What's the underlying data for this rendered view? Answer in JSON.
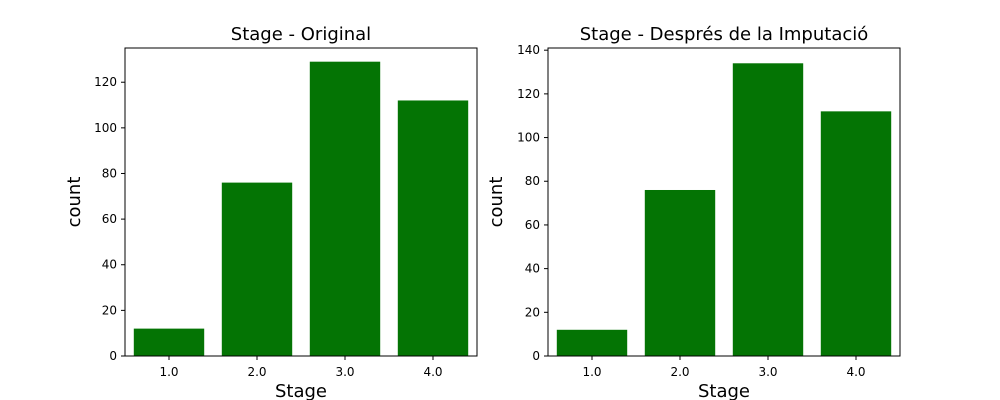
{
  "chart_data": [
    {
      "type": "bar",
      "title": "Stage - Original",
      "xlabel": "Stage",
      "ylabel": "count",
      "categories": [
        "1.0",
        "2.0",
        "3.0",
        "4.0"
      ],
      "values": [
        12,
        76,
        129,
        112
      ],
      "ylim": [
        0,
        135
      ],
      "yticks": [
        0,
        20,
        40,
        60,
        80,
        100,
        120
      ],
      "bar_color": "#047404",
      "grid": false
    },
    {
      "type": "bar",
      "title": "Stage - Després de la Imputació",
      "xlabel": "Stage",
      "ylabel": "count",
      "categories": [
        "1.0",
        "2.0",
        "3.0",
        "4.0"
      ],
      "values": [
        12,
        76,
        134,
        112
      ],
      "ylim": [
        0,
        141
      ],
      "yticks": [
        0,
        20,
        40,
        60,
        80,
        100,
        120,
        140
      ],
      "bar_color": "#047404",
      "grid": false
    }
  ]
}
